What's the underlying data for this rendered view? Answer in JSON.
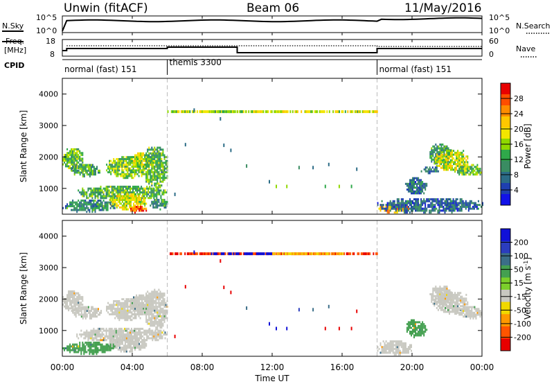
{
  "header": {
    "radar": "Unwin (fitACF)",
    "beam": "Beam 06",
    "date": "11/May/2016"
  },
  "top_panels": {
    "nsky_label": "N.Sky",
    "nsky_ticks": [
      "10^5",
      "10^0"
    ],
    "nsearch_label": "N.Search",
    "nsearch_ticks": [
      "10^5",
      "10^0"
    ],
    "freq_label_1": "Freq.",
    "freq_label_2": "[MHz]",
    "freq_ticks": [
      "18",
      "8"
    ],
    "nave_label": "Nave",
    "nave_ticks": [
      "60",
      "0"
    ],
    "cpid_label": "CPID",
    "cpid_segments": [
      {
        "name": "normal (fast) 151",
        "start_h": 0,
        "end_h": 6
      },
      {
        "name": "themis 3300",
        "start_h": 6,
        "end_h": 18
      },
      {
        "name": "normal (fast) 151",
        "start_h": 18,
        "end_h": 24
      }
    ]
  },
  "x_axis": {
    "label": "Time UT",
    "ticks": [
      "00:00",
      "04:00",
      "08:00",
      "12:00",
      "16:00",
      "20:00",
      "00:00"
    ],
    "tick_hours": [
      0,
      4,
      8,
      12,
      16,
      20,
      24
    ],
    "range_h": [
      0,
      24
    ]
  },
  "colorbars": {
    "power": {
      "label": "Power [dB]",
      "ticks": [
        "28",
        "24",
        "20",
        "16",
        "12",
        "8",
        "4"
      ],
      "colors": [
        "#e80000",
        "#ff4d00",
        "#ff8c00",
        "#ffc700",
        "#f2e600",
        "#8fd800",
        "#2fa84a",
        "#3a8c62",
        "#2b6b86",
        "#1e3fb0",
        "#1212e8"
      ]
    },
    "velocity": {
      "label": "Velocity [m s",
      "label_sup": "-1",
      "label_end": "]",
      "ticks": [
        "200",
        "100",
        "50",
        "15",
        "-15",
        "-50",
        "-100",
        "-200"
      ],
      "colors": [
        "#1010d8",
        "#2b3dbe",
        "#3b6e88",
        "#44a050",
        "#7ccf2b",
        "#c8c8c0",
        "#f0d800",
        "#ff9900",
        "#ff5500",
        "#e80000"
      ]
    }
  },
  "chart_data": [
    {
      "type": "heatmap",
      "title": "Power",
      "ylabel": "Slant Range [km]",
      "yticks": [
        "4000",
        "3000",
        "2000",
        "1000"
      ],
      "ylim": [
        180,
        4500
      ],
      "xlim": [
        0,
        24
      ],
      "blobs": [
        {
          "t0": 0.0,
          "t1": 1.2,
          "r0": 1550,
          "r1": 2250,
          "v": 13
        },
        {
          "t0": 0.5,
          "t1": 2.2,
          "r0": 1350,
          "r1": 1750,
          "v": 11
        },
        {
          "t0": 2.5,
          "t1": 4.8,
          "r0": 1300,
          "r1": 2000,
          "v": 14
        },
        {
          "t0": 3.8,
          "t1": 5.2,
          "r0": 1600,
          "r1": 2100,
          "v": 17
        },
        {
          "t0": 4.6,
          "t1": 6.0,
          "r0": 1000,
          "r1": 2300,
          "v": 12
        },
        {
          "t0": 0.8,
          "t1": 6.0,
          "r0": 600,
          "r1": 1050,
          "v": 12
        },
        {
          "t0": 2.6,
          "t1": 4.8,
          "r0": 300,
          "r1": 800,
          "v": 18
        },
        {
          "t0": 0.0,
          "t1": 3.0,
          "r0": 220,
          "r1": 600,
          "v": 9
        },
        {
          "t0": 3.8,
          "t1": 4.8,
          "r0": 200,
          "r1": 400,
          "v": 26
        },
        {
          "t0": 5.0,
          "t1": 6.0,
          "r0": 300,
          "r1": 650,
          "v": 10
        },
        {
          "t0": 18.0,
          "t1": 19.8,
          "r0": 200,
          "r1": 500,
          "v": 22
        },
        {
          "t0": 18.0,
          "t1": 24.0,
          "r0": 200,
          "r1": 650,
          "v": 6
        },
        {
          "t0": 19.6,
          "t1": 20.8,
          "r0": 750,
          "r1": 1300,
          "v": 6
        },
        {
          "t0": 21.0,
          "t1": 22.2,
          "r0": 1700,
          "r1": 2400,
          "v": 10
        },
        {
          "t0": 21.3,
          "t1": 23.2,
          "r0": 1500,
          "r1": 2200,
          "v": 17
        },
        {
          "t0": 22.5,
          "t1": 24.0,
          "r0": 1350,
          "r1": 1750,
          "v": 13
        },
        {
          "t0": 20.5,
          "t1": 21.5,
          "r0": 1450,
          "r1": 1650,
          "v": 7
        }
      ],
      "lines": [
        {
          "t0": 6.0,
          "t1": 18.0,
          "r": 3440,
          "v": 17
        },
        {
          "t0": 8.5,
          "t1": 10.5,
          "r": 3440,
          "v": 13
        }
      ],
      "dots": [
        {
          "t": 7.0,
          "r": 2380,
          "v": 6
        },
        {
          "t": 9.2,
          "r": 2360,
          "v": 6
        },
        {
          "t": 9.6,
          "r": 2200,
          "v": 6
        },
        {
          "t": 10.5,
          "r": 1700,
          "v": 8
        },
        {
          "t": 12.2,
          "r": 1050,
          "v": 14
        },
        {
          "t": 12.8,
          "r": 1050,
          "v": 14
        },
        {
          "t": 15.0,
          "r": 1050,
          "v": 13
        },
        {
          "t": 15.8,
          "r": 1050,
          "v": 14
        },
        {
          "t": 16.5,
          "r": 1050,
          "v": 13
        },
        {
          "t": 13.5,
          "r": 1650,
          "v": 8
        },
        {
          "t": 14.3,
          "r": 1650,
          "v": 6
        },
        {
          "t": 16.8,
          "r": 1600,
          "v": 6
        },
        {
          "t": 9.0,
          "r": 3200,
          "v": 6
        },
        {
          "t": 7.5,
          "r": 3480,
          "v": 5
        },
        {
          "t": 11.8,
          "r": 1200,
          "v": 6
        },
        {
          "t": 15.2,
          "r": 1750,
          "v": 6
        },
        {
          "t": 6.4,
          "r": 800,
          "v": 6
        }
      ]
    },
    {
      "type": "heatmap",
      "title": "Velocity",
      "ylabel": "Slant Range [km]",
      "yticks": [
        "4000",
        "3000",
        "2000",
        "1000"
      ],
      "ylim": [
        180,
        4500
      ],
      "xlim": [
        0,
        24
      ],
      "blobs": [
        {
          "t0": 0.0,
          "t1": 1.2,
          "r0": 1550,
          "r1": 2250,
          "v": 0
        },
        {
          "t0": 0.5,
          "t1": 2.2,
          "r0": 1350,
          "r1": 1750,
          "v": 0
        },
        {
          "t0": 2.5,
          "t1": 4.8,
          "r0": 1300,
          "r1": 2000,
          "v": 0
        },
        {
          "t0": 3.8,
          "t1": 5.2,
          "r0": 1600,
          "r1": 2100,
          "v": 0
        },
        {
          "t0": 4.6,
          "t1": 6.0,
          "r0": 1000,
          "r1": 2300,
          "v": 0
        },
        {
          "t0": 0.8,
          "t1": 6.0,
          "r0": 600,
          "r1": 1050,
          "v": 0
        },
        {
          "t0": 2.6,
          "t1": 4.8,
          "r0": 300,
          "r1": 800,
          "v": 0
        },
        {
          "t0": 0.0,
          "t1": 3.0,
          "r0": 220,
          "r1": 600,
          "v": 30
        },
        {
          "t0": 18.0,
          "t1": 20.0,
          "r0": 200,
          "r1": 650,
          "v": 0
        },
        {
          "t0": 19.6,
          "t1": 20.8,
          "r0": 750,
          "r1": 1300,
          "v": 30
        },
        {
          "t0": 21.0,
          "t1": 22.2,
          "r0": 1700,
          "r1": 2400,
          "v": 0
        },
        {
          "t0": 21.3,
          "t1": 23.2,
          "r0": 1500,
          "r1": 2200,
          "v": 0
        },
        {
          "t0": 22.5,
          "t1": 24.0,
          "r0": 1350,
          "r1": 1750,
          "v": 0
        }
      ],
      "lines": [
        {
          "t0": 6.0,
          "t1": 18.0,
          "r": 3440,
          "v": -150
        },
        {
          "t0": 8.5,
          "t1": 12.0,
          "r": 3440,
          "v": 200
        },
        {
          "t0": 12.0,
          "t1": 16.0,
          "r": 3440,
          "v": -60
        }
      ],
      "dots": [
        {
          "t": 7.0,
          "r": 2380,
          "v": -150
        },
        {
          "t": 9.2,
          "r": 2360,
          "v": -150
        },
        {
          "t": 9.6,
          "r": 2200,
          "v": -150
        },
        {
          "t": 10.5,
          "r": 1700,
          "v": 60
        },
        {
          "t": 12.2,
          "r": 1050,
          "v": 200
        },
        {
          "t": 12.8,
          "r": 1050,
          "v": 200
        },
        {
          "t": 15.0,
          "r": 1050,
          "v": -200
        },
        {
          "t": 15.8,
          "r": 1050,
          "v": -200
        },
        {
          "t": 16.5,
          "r": 1050,
          "v": -200
        },
        {
          "t": 13.5,
          "r": 1650,
          "v": 120
        },
        {
          "t": 14.3,
          "r": 1650,
          "v": 60
        },
        {
          "t": 16.8,
          "r": 1600,
          "v": -150
        },
        {
          "t": 9.0,
          "r": 3200,
          "v": -150
        },
        {
          "t": 7.5,
          "r": 3480,
          "v": 200
        },
        {
          "t": 11.8,
          "r": 1200,
          "v": 200
        },
        {
          "t": 15.2,
          "r": 1750,
          "v": 60
        },
        {
          "t": 6.4,
          "r": 800,
          "v": -150
        }
      ]
    }
  ]
}
